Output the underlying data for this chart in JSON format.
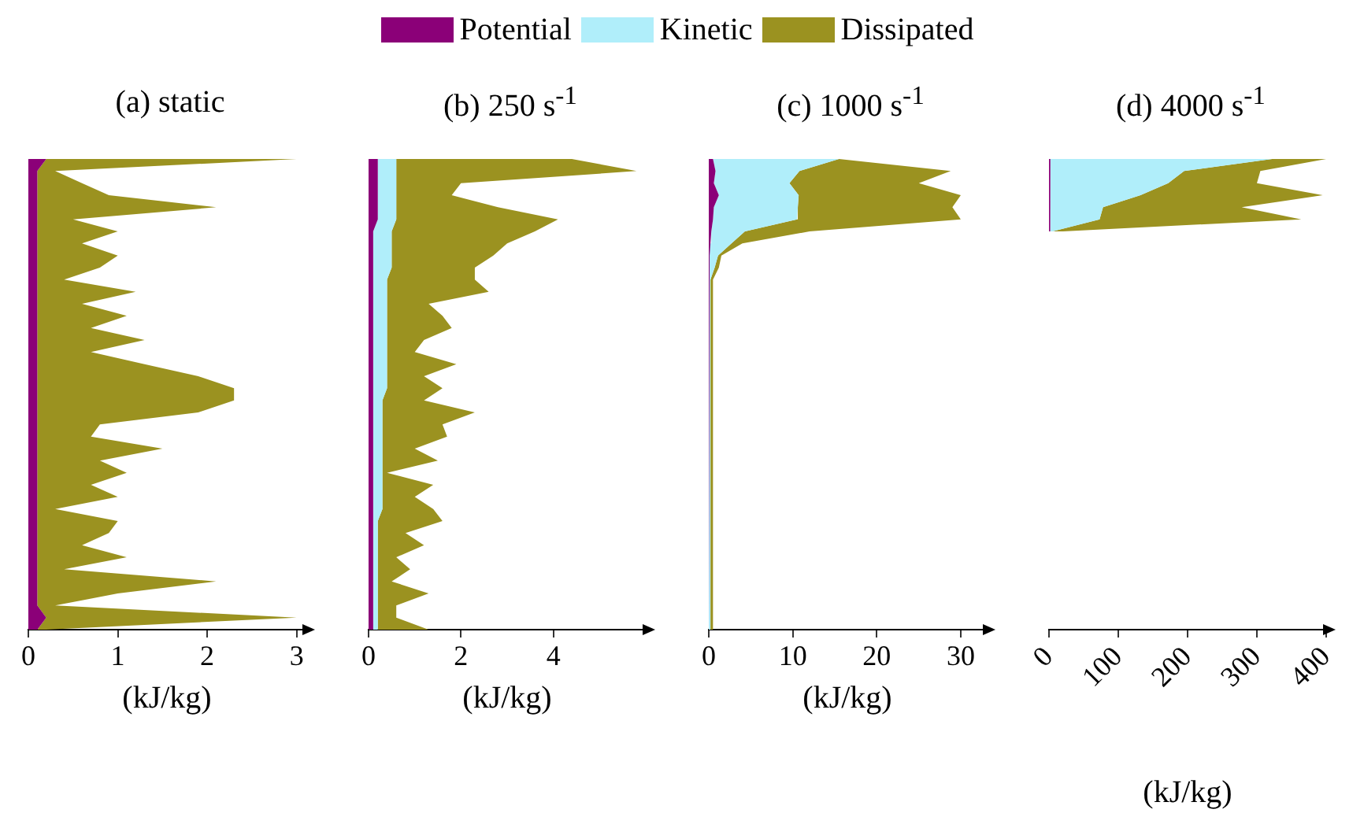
{
  "chart_data": [
    {
      "type": "area",
      "title": "(a) static",
      "stacked": true,
      "orientation": "horizontal",
      "tick_labels": "x",
      "xlabel": "(kJ/kg)",
      "xlim": [
        0,
        3.1
      ],
      "xticks": [
        0,
        1,
        2,
        3
      ],
      "categories": [
        null,
        null,
        null,
        null,
        null,
        null,
        null,
        null,
        null,
        null,
        null,
        null,
        null,
        null,
        null,
        null,
        null,
        null,
        null,
        null,
        null,
        null,
        null,
        null,
        null,
        null,
        null,
        null,
        null,
        null,
        null,
        null,
        null,
        null,
        null,
        null,
        null,
        null,
        null,
        null
      ],
      "series": [
        {
          "color": "#8b0078",
          "values": [
            0.2,
            0.1,
            0.1,
            0.1,
            0.1,
            0.1,
            0.1,
            0.1,
            0.1,
            0.1,
            0.1,
            0.1,
            0.1,
            0.1,
            0.1,
            0.1,
            0.1,
            0.1,
            0.1,
            0.1,
            0.1,
            0.1,
            0.1,
            0.1,
            0.1,
            0.1,
            0.1,
            0.1,
            0.1,
            0.1,
            0.1,
            0.1,
            0.1,
            0.1,
            0.1,
            0.1,
            0.1,
            0.1,
            0.2,
            0.1
          ]
        },
        {
          "color": "#9b9220",
          "values": [
            2.8,
            0.2,
            0.5,
            0.8,
            2.0,
            0.4,
            0.9,
            0.5,
            0.9,
            0.7,
            0.3,
            1.1,
            0.5,
            1.0,
            0.6,
            1.2,
            0.6,
            1.2,
            1.8,
            2.2,
            2.2,
            1.8,
            0.7,
            0.6,
            1.4,
            0.7,
            1.0,
            0.6,
            0.9,
            0.2,
            0.9,
            0.8,
            0.5,
            1.0,
            0.3,
            2.0,
            0.9,
            0.2,
            2.8,
            0.1
          ]
        }
      ]
    },
    {
      "type": "area",
      "title": "(b) 250 s$^{-1}$",
      "stacked": true,
      "orientation": "horizontal",
      "legend": "top",
      "tick_labels": "x",
      "xlabel": "(kJ/kg)",
      "xlim": [
        0,
        6
      ],
      "xticks": [
        0,
        2,
        4
      ],
      "categories": [
        null,
        null,
        null,
        null,
        null,
        null,
        null,
        null,
        null,
        null,
        null,
        null,
        null,
        null,
        null,
        null,
        null,
        null,
        null,
        null,
        null,
        null,
        null,
        null,
        null,
        null,
        null,
        null,
        null,
        null,
        null,
        null,
        null,
        null,
        null,
        null,
        null,
        null,
        null,
        null
      ],
      "series": [
        {
          "name": "Potential",
          "color": "#8b0078",
          "values": [
            0.2,
            0.2,
            0.2,
            0.2,
            0.2,
            0.2,
            0.1,
            0.1,
            0.1,
            0.1,
            0.1,
            0.1,
            0.1,
            0.1,
            0.1,
            0.1,
            0.1,
            0.1,
            0.1,
            0.1,
            0.1,
            0.1,
            0.1,
            0.1,
            0.1,
            0.1,
            0.1,
            0.1,
            0.1,
            0.1,
            0.1,
            0.1,
            0.1,
            0.1,
            0.1,
            0.1,
            0.1,
            0.1,
            0.1,
            0.1
          ]
        },
        {
          "name": "Kinetic",
          "color": "#b0eefa",
          "values": [
            0.4,
            0.4,
            0.4,
            0.4,
            0.4,
            0.4,
            0.4,
            0.4,
            0.4,
            0.4,
            0.3,
            0.3,
            0.3,
            0.3,
            0.3,
            0.3,
            0.3,
            0.3,
            0.3,
            0.3,
            0.2,
            0.2,
            0.2,
            0.2,
            0.2,
            0.2,
            0.2,
            0.2,
            0.2,
            0.2,
            0.1,
            0.1,
            0.1,
            0.1,
            0.1,
            0.1,
            0.1,
            0.1,
            0.1,
            0.1
          ]
        },
        {
          "name": "Dissipated",
          "color": "#9b9220",
          "values": [
            3.8,
            5.2,
            1.4,
            1.2,
            2.2,
            3.5,
            3.1,
            2.5,
            2.2,
            1.8,
            1.9,
            2.2,
            0.9,
            1.2,
            1.4,
            0.8,
            0.6,
            1.5,
            0.8,
            1.2,
            0.9,
            2.0,
            1.3,
            1.4,
            0.7,
            1.2,
            0.1,
            1.1,
            0.7,
            1.1,
            1.4,
            0.6,
            1.0,
            0.4,
            0.7,
            0.3,
            1.1,
            0.4,
            0.4,
            1.1
          ]
        }
      ]
    },
    {
      "type": "area",
      "title": "(c) 1000 s$^{-1}$",
      "stacked": true,
      "orientation": "horizontal",
      "tick_labels": "x",
      "xlabel": "(kJ/kg)",
      "xlim": [
        0,
        33
      ],
      "xticks": [
        0,
        10,
        20,
        30
      ],
      "categories": [
        null,
        null,
        null,
        null,
        null,
        null,
        null,
        null,
        null,
        null,
        null,
        null,
        null,
        null,
        null,
        null,
        null,
        null,
        null,
        null,
        null,
        null,
        null,
        null,
        null,
        null,
        null,
        null,
        null,
        null,
        null,
        null,
        null,
        null,
        null,
        null,
        null,
        null,
        null,
        null
      ],
      "series": [
        {
          "color": "#8b0078",
          "values": [
            0.5,
            0.8,
            0.6,
            1.2,
            0.6,
            0.5,
            0.3,
            0.2,
            0.1,
            0.1,
            0,
            0,
            0,
            0,
            0,
            0,
            0,
            0,
            0,
            0,
            0,
            0,
            0,
            0,
            0,
            0,
            0,
            0,
            0,
            0,
            0,
            0,
            0,
            0,
            0,
            0,
            0,
            0,
            0,
            0
          ]
        },
        {
          "color": "#b0eefa",
          "values": [
            15,
            10,
            9,
            9.5,
            10,
            10,
            4,
            2.5,
            1,
            0.6,
            0.2,
            0.2,
            0.2,
            0.2,
            0.2,
            0.2,
            0.2,
            0.2,
            0.2,
            0.2,
            0.2,
            0.2,
            0.2,
            0.2,
            0.2,
            0.2,
            0.2,
            0.2,
            0.2,
            0.2,
            0.2,
            0.2,
            0.2,
            0.2,
            0.2,
            0.2,
            0.2,
            0.2,
            0.2,
            0.2
          ]
        },
        {
          "color": "#9b9220",
          "values": [
            0,
            18,
            15.4,
            19.3,
            18.4,
            19.5,
            7.7,
            1.3,
            0.4,
            0.5,
            0.3,
            0.3,
            0.3,
            0.3,
            0.3,
            0.3,
            0.3,
            0.3,
            0.3,
            0.3,
            0.3,
            0.3,
            0.3,
            0.3,
            0.3,
            0.3,
            0.3,
            0.3,
            0.3,
            0.3,
            0.3,
            0.3,
            0.3,
            0.3,
            0.3,
            0.3,
            0.3,
            0.3,
            0.3,
            0.3
          ]
        }
      ]
    },
    {
      "type": "area",
      "title": "(d) 4000 s$^{-1}$",
      "stacked": true,
      "orientation": "horizontal",
      "tick_labels": "x",
      "xlabel": "(kJ/kg)",
      "xlim": [
        0,
        400
      ],
      "xticks": [
        0,
        100,
        200,
        300,
        400
      ],
      "categories": [
        null,
        null,
        null,
        null,
        null,
        null,
        null,
        null,
        null,
        null,
        null,
        null,
        null,
        null,
        null,
        null,
        null,
        null,
        null,
        null,
        null,
        null,
        null,
        null,
        null,
        null,
        null,
        null,
        null,
        null,
        null,
        null,
        null,
        null,
        null,
        null,
        null,
        null,
        null,
        null
      ],
      "series": [
        {
          "color": "#8b0078",
          "values": [
            2,
            2,
            2,
            2,
            2,
            2,
            1,
            null,
            null,
            null,
            null,
            null,
            null,
            null,
            null,
            null,
            null,
            null,
            null,
            null,
            null,
            null,
            null,
            null,
            null,
            null,
            null,
            null,
            null,
            null,
            null,
            null,
            null,
            null,
            null,
            null,
            null,
            null,
            null,
            null
          ]
        },
        {
          "color": "#b0eefa",
          "values": [
            320,
            193,
            170,
            130,
            76,
            71,
            4,
            null,
            null,
            null,
            null,
            null,
            null,
            null,
            null,
            null,
            null,
            null,
            null,
            null,
            null,
            null,
            null,
            null,
            null,
            null,
            null,
            null,
            null,
            null,
            null,
            null,
            null,
            null,
            null,
            null,
            null,
            null,
            null,
            null
          ]
        },
        {
          "color": "#9b9220",
          "values": [
            78,
            110,
            128,
            263,
            200,
            291,
            15,
            null,
            null,
            null,
            null,
            null,
            null,
            null,
            null,
            null,
            null,
            null,
            null,
            null,
            null,
            null,
            null,
            null,
            null,
            null,
            null,
            null,
            null,
            null,
            null,
            null,
            null,
            null,
            null,
            null,
            null,
            null,
            null,
            null
          ]
        }
      ]
    }
  ]
}
